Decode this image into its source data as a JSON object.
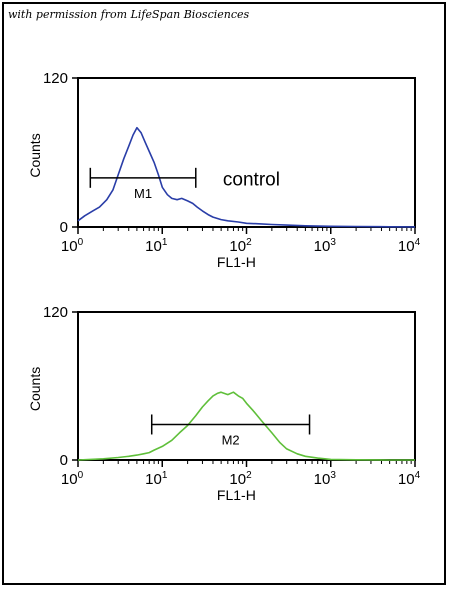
{
  "credit": "with permission from LifeSpan Biosciences",
  "chart_data": [
    {
      "type": "line",
      "xlabel": "FL1-H",
      "ylabel": "Counts",
      "x_scale": "log",
      "xlim": [
        1,
        10000
      ],
      "ylim": [
        0,
        120
      ],
      "x_ticks": [
        {
          "base": "10",
          "exp": "0"
        },
        {
          "base": "10",
          "exp": "1"
        },
        {
          "base": "10",
          "exp": "2"
        },
        {
          "base": "10",
          "exp": "3"
        },
        {
          "base": "10",
          "exp": "4"
        }
      ],
      "y_ticks": [
        "0",
        "120"
      ],
      "annotation": "control",
      "marker": {
        "label": "M1",
        "x_start": 1.4,
        "x_end": 25
      },
      "series": [
        {
          "color": "#2a3ea8",
          "x": [
            1,
            1.2,
            1.5,
            1.8,
            2.2,
            2.6,
            3.0,
            3.5,
            4.0,
            4.5,
            5.0,
            5.6,
            6.3,
            7.1,
            8.0,
            9.0,
            10,
            11.5,
            13,
            15,
            17,
            20,
            23,
            26,
            30,
            35,
            40,
            50,
            60,
            80,
            100,
            150,
            200,
            300,
            500,
            1000,
            2000,
            5000,
            10000
          ],
          "y": [
            5,
            9,
            13,
            16,
            22,
            30,
            42,
            55,
            65,
            74,
            80,
            76,
            68,
            60,
            52,
            42,
            32,
            26,
            23,
            22,
            23,
            21,
            19,
            16,
            13,
            10,
            8,
            6,
            5,
            4,
            3,
            2.5,
            2,
            1.5,
            1,
            0.6,
            0.4,
            0.2,
            0.1
          ]
        }
      ]
    },
    {
      "type": "line",
      "xlabel": "FL1-H",
      "ylabel": "Counts",
      "x_scale": "log",
      "xlim": [
        1,
        10000
      ],
      "ylim": [
        0,
        120
      ],
      "x_ticks": [
        {
          "base": "10",
          "exp": "0"
        },
        {
          "base": "10",
          "exp": "1"
        },
        {
          "base": "10",
          "exp": "2"
        },
        {
          "base": "10",
          "exp": "3"
        },
        {
          "base": "10",
          "exp": "4"
        }
      ],
      "y_ticks": [
        "0",
        "120"
      ],
      "marker": {
        "label": "M2",
        "x_start": 7.5,
        "x_end": 560
      },
      "series": [
        {
          "color": "#5fbf3a",
          "x": [
            1,
            2,
            3,
            4,
            5,
            6,
            7,
            8,
            10,
            13,
            16,
            20,
            25,
            30,
            35,
            40,
            45,
            50,
            60,
            70,
            80,
            90,
            100,
            120,
            150,
            200,
            250,
            300,
            400,
            500,
            700,
            1000,
            2000,
            5000,
            10000
          ],
          "y": [
            0,
            1,
            2,
            3,
            4,
            5,
            6,
            8,
            11,
            16,
            22,
            28,
            36,
            43,
            48,
            52,
            54,
            55,
            53,
            55,
            52,
            50,
            46,
            40,
            32,
            22,
            14,
            9,
            5,
            3,
            1.5,
            0.5,
            0.2,
            0,
            0
          ]
        }
      ]
    }
  ]
}
